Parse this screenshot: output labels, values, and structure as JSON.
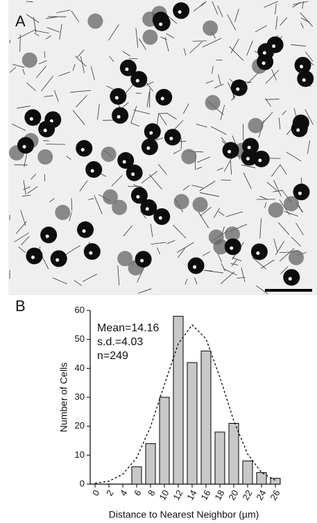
{
  "panels": {
    "a": "A",
    "b": "B"
  },
  "chart_data": {
    "type": "bar",
    "x": [
      6,
      8,
      10,
      12,
      14,
      16,
      18,
      20,
      22,
      24,
      26
    ],
    "values": [
      6,
      14,
      30,
      58,
      42,
      46,
      18,
      21,
      8,
      4,
      2
    ],
    "color": "#c8c8c8",
    "xlabel": "Distance to Nearest Neighbor (µm)",
    "ylabel": "Number of Cells",
    "annotations": [
      "Mean=14.16",
      "s.d.=4.03",
      "n=249"
    ],
    "xlim": [
      -0.7,
      26.7
    ],
    "ylim": [
      0,
      60
    ],
    "xticks": [
      0,
      2,
      4,
      6,
      8,
      10,
      12,
      14,
      16,
      18,
      20,
      22,
      24,
      26
    ],
    "yticks": [
      0,
      10,
      20,
      30,
      40,
      50,
      60
    ],
    "fit": {
      "x": [
        0,
        2,
        4,
        6,
        8,
        10,
        12,
        14,
        16,
        18,
        20,
        22,
        24,
        26
      ],
      "y": [
        0.3,
        1.0,
        3.4,
        9.1,
        19.8,
        34.4,
        48.5,
        55,
        50.2,
        36.9,
        21.9,
        10.4,
        4.0,
        1.3
      ]
    }
  }
}
